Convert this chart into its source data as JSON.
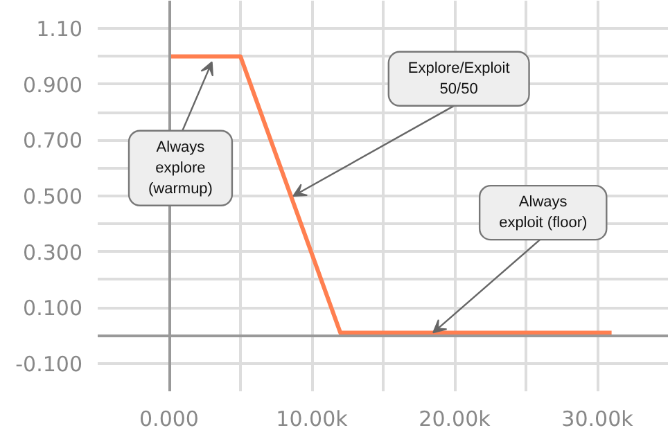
{
  "chart_data": {
    "type": "line",
    "x": [
      0,
      5000,
      12000,
      31000
    ],
    "series": [
      {
        "color": "#ff7f50",
        "values": [
          1,
          1,
          0.01,
          0.01
        ]
      }
    ],
    "xlim": [
      -5000,
      35000
    ],
    "ylim": [
      -0.2,
      1.2
    ],
    "xticks": [
      {
        "value": 0,
        "label": "0.000"
      },
      {
        "value": 5000,
        "label": null
      },
      {
        "value": 10000,
        "label": "10.00k"
      },
      {
        "value": 15000,
        "label": null
      },
      {
        "value": 20000,
        "label": "20.00k"
      },
      {
        "value": 25000,
        "label": null
      },
      {
        "value": 30000,
        "label": "30.00k"
      }
    ],
    "yticks": [
      {
        "value": -0.1,
        "label": "-0.100"
      },
      {
        "value": 0,
        "label": null
      },
      {
        "value": 0.1,
        "label": "0.100"
      },
      {
        "value": 0.2,
        "label": null
      },
      {
        "value": 0.3,
        "label": "0.300"
      },
      {
        "value": 0.4,
        "label": null
      },
      {
        "value": 0.5,
        "label": "0.500"
      },
      {
        "value": 0.6,
        "label": null
      },
      {
        "value": 0.7,
        "label": "0.700"
      },
      {
        "value": 0.8,
        "label": null
      },
      {
        "value": 0.9,
        "label": "0.900"
      },
      {
        "value": 1.0,
        "label": null
      },
      {
        "value": 1.1,
        "label": "1.10"
      }
    ],
    "grid": true,
    "marker": "none",
    "line_style": "solid",
    "annotations": [
      {
        "text": "Always\nexplore\n(warmup)",
        "x": 3000,
        "y": 0.98
      },
      {
        "text": "Explore/Exploit\n50/50",
        "x": 8700,
        "y": 0.5
      },
      {
        "text": "Always\nexploit (floor)",
        "x": 18500,
        "y": 0.01
      }
    ]
  }
}
